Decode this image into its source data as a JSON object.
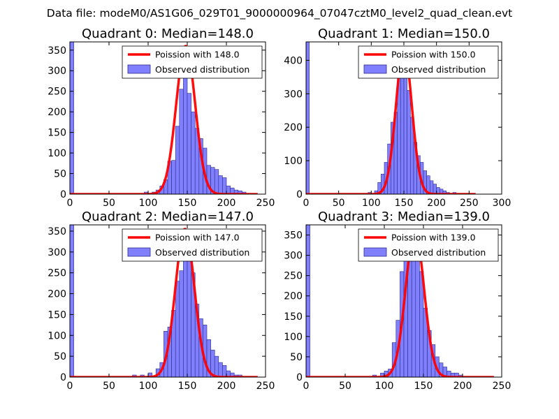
{
  "figure_title": "Data file: modeM0/AS1G06_029T01_9000000964_07047cztM0_level2_quad_clean.evt",
  "colors": {
    "bar_fill": "#8080ff",
    "bar_edge": "#2a2a8a",
    "poisson_line": "#ff0000",
    "axes": "#000000"
  },
  "chart_data": [
    {
      "type": "bar",
      "title": "Quadrant 0: Median=148.0",
      "xlabel": "",
      "ylabel": "",
      "xlim": [
        0,
        250
      ],
      "ylim": [
        0,
        370
      ],
      "xticks": [
        0,
        50,
        100,
        150,
        200,
        250
      ],
      "yticks": [
        0,
        50,
        100,
        150,
        200,
        250,
        300,
        350
      ],
      "legend": {
        "position": "top-right",
        "line_label": "Poission with 148.0",
        "bar_label": "Observed distribution"
      },
      "bin_width": 5,
      "bins": [
        {
          "x": 0,
          "count": 370
        },
        {
          "x": 95,
          "count": 5
        },
        {
          "x": 105,
          "count": 5
        },
        {
          "x": 110,
          "count": 10
        },
        {
          "x": 115,
          "count": 20
        },
        {
          "x": 120,
          "count": 35
        },
        {
          "x": 125,
          "count": 80
        },
        {
          "x": 130,
          "count": 82
        },
        {
          "x": 135,
          "count": 165
        },
        {
          "x": 140,
          "count": 255
        },
        {
          "x": 145,
          "count": 290
        },
        {
          "x": 150,
          "count": 245
        },
        {
          "x": 155,
          "count": 200
        },
        {
          "x": 160,
          "count": 160
        },
        {
          "x": 165,
          "count": 135
        },
        {
          "x": 170,
          "count": 112
        },
        {
          "x": 175,
          "count": 70
        },
        {
          "x": 180,
          "count": 65
        },
        {
          "x": 185,
          "count": 60
        },
        {
          "x": 190,
          "count": 45
        },
        {
          "x": 195,
          "count": 40
        },
        {
          "x": 200,
          "count": 20
        },
        {
          "x": 205,
          "count": 15
        },
        {
          "x": 210,
          "count": 10
        },
        {
          "x": 215,
          "count": 8
        },
        {
          "x": 220,
          "count": 5
        }
      ],
      "poisson": {
        "mean": 148.0,
        "peak": 360,
        "x_range": [
          0,
          240
        ]
      }
    },
    {
      "type": "bar",
      "title": "Quadrant 1: Median=150.0",
      "xlabel": "",
      "ylabel": "",
      "xlim": [
        0,
        300
      ],
      "ylim": [
        0,
        455
      ],
      "xticks": [
        0,
        50,
        100,
        150,
        200,
        250,
        300
      ],
      "yticks": [
        0,
        100,
        200,
        300,
        400
      ],
      "legend": {
        "position": "top-right",
        "line_label": "Poission with 150.0",
        "bar_label": "Observed distribution"
      },
      "bin_width": 5,
      "bins": [
        {
          "x": 0,
          "count": 455
        },
        {
          "x": 95,
          "count": 5
        },
        {
          "x": 105,
          "count": 10
        },
        {
          "x": 110,
          "count": 35
        },
        {
          "x": 115,
          "count": 60
        },
        {
          "x": 120,
          "count": 95
        },
        {
          "x": 125,
          "count": 150
        },
        {
          "x": 130,
          "count": 215
        },
        {
          "x": 135,
          "count": 245
        },
        {
          "x": 140,
          "count": 380
        },
        {
          "x": 145,
          "count": 420
        },
        {
          "x": 150,
          "count": 405
        },
        {
          "x": 155,
          "count": 310
        },
        {
          "x": 160,
          "count": 230
        },
        {
          "x": 165,
          "count": 155
        },
        {
          "x": 170,
          "count": 115
        },
        {
          "x": 175,
          "count": 95
        },
        {
          "x": 180,
          "count": 70
        },
        {
          "x": 185,
          "count": 55
        },
        {
          "x": 190,
          "count": 40
        },
        {
          "x": 195,
          "count": 30
        },
        {
          "x": 200,
          "count": 20
        },
        {
          "x": 205,
          "count": 15
        },
        {
          "x": 210,
          "count": 10
        },
        {
          "x": 215,
          "count": 5
        },
        {
          "x": 225,
          "count": 5
        }
      ],
      "poisson": {
        "mean": 150.0,
        "peak": 435,
        "x_range": [
          0,
          260
        ]
      }
    },
    {
      "type": "bar",
      "title": "Quadrant 2: Median=147.0",
      "xlabel": "",
      "ylabel": "",
      "xlim": [
        0,
        250
      ],
      "ylim": [
        0,
        365
      ],
      "xticks": [
        0,
        50,
        100,
        150,
        200,
        250
      ],
      "yticks": [
        0,
        50,
        100,
        150,
        200,
        250,
        300,
        350
      ],
      "legend": {
        "position": "top-right",
        "line_label": "Poission with 147.0",
        "bar_label": "Observed distribution"
      },
      "bin_width": 5,
      "bins": [
        {
          "x": 0,
          "count": 365
        },
        {
          "x": 80,
          "count": 5
        },
        {
          "x": 90,
          "count": 5
        },
        {
          "x": 100,
          "count": 10
        },
        {
          "x": 110,
          "count": 20
        },
        {
          "x": 115,
          "count": 35
        },
        {
          "x": 120,
          "count": 110
        },
        {
          "x": 125,
          "count": 120
        },
        {
          "x": 130,
          "count": 160
        },
        {
          "x": 135,
          "count": 230
        },
        {
          "x": 140,
          "count": 255
        },
        {
          "x": 145,
          "count": 290
        },
        {
          "x": 150,
          "count": 310
        },
        {
          "x": 155,
          "count": 250
        },
        {
          "x": 160,
          "count": 175
        },
        {
          "x": 165,
          "count": 140
        },
        {
          "x": 170,
          "count": 125
        },
        {
          "x": 175,
          "count": 90
        },
        {
          "x": 180,
          "count": 65
        },
        {
          "x": 185,
          "count": 50
        },
        {
          "x": 190,
          "count": 35
        },
        {
          "x": 195,
          "count": 28
        },
        {
          "x": 200,
          "count": 15
        },
        {
          "x": 205,
          "count": 10
        },
        {
          "x": 210,
          "count": 5
        },
        {
          "x": 215,
          "count": 5
        }
      ],
      "poisson": {
        "mean": 147.0,
        "peak": 355,
        "x_range": [
          0,
          240
        ]
      }
    },
    {
      "type": "bar",
      "title": "Quadrant 3: Median=139.0",
      "xlabel": "",
      "ylabel": "",
      "xlim": [
        0,
        250
      ],
      "ylim": [
        0,
        375
      ],
      "xticks": [
        0,
        50,
        100,
        150,
        200,
        250
      ],
      "yticks": [
        0,
        50,
        100,
        150,
        200,
        250,
        300,
        350
      ],
      "legend": {
        "position": "top-right",
        "line_label": "Poission with 139.0",
        "bar_label": "Observed distribution"
      },
      "bin_width": 5,
      "bins": [
        {
          "x": 0,
          "count": 375
        },
        {
          "x": 85,
          "count": 5
        },
        {
          "x": 95,
          "count": 10
        },
        {
          "x": 100,
          "count": 15
        },
        {
          "x": 105,
          "count": 20
        },
        {
          "x": 110,
          "count": 85
        },
        {
          "x": 115,
          "count": 140
        },
        {
          "x": 120,
          "count": 260
        },
        {
          "x": 125,
          "count": 295
        },
        {
          "x": 130,
          "count": 330
        },
        {
          "x": 135,
          "count": 335
        },
        {
          "x": 140,
          "count": 310
        },
        {
          "x": 145,
          "count": 260
        },
        {
          "x": 150,
          "count": 170
        },
        {
          "x": 155,
          "count": 115
        },
        {
          "x": 160,
          "count": 80
        },
        {
          "x": 165,
          "count": 50
        },
        {
          "x": 170,
          "count": 35
        },
        {
          "x": 175,
          "count": 25
        },
        {
          "x": 180,
          "count": 15
        },
        {
          "x": 185,
          "count": 10
        },
        {
          "x": 190,
          "count": 10
        },
        {
          "x": 195,
          "count": 5
        }
      ],
      "poisson": {
        "mean": 139.0,
        "peak": 360,
        "x_range": [
          0,
          240
        ]
      }
    }
  ]
}
